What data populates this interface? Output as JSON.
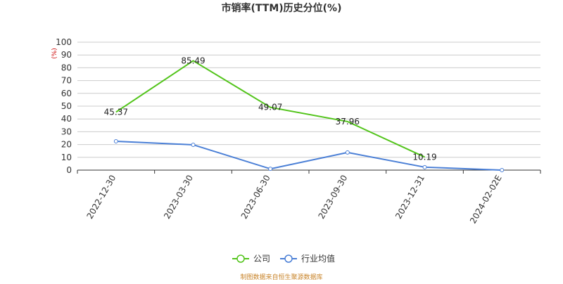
{
  "chart_data": {
    "type": "line",
    "title": "市销率(TTM)历史分位(%)",
    "y_unit": "(%)",
    "categories": [
      "2022-12-30",
      "2023-03-30",
      "2023-06-30",
      "2023-09-30",
      "2023-12-31",
      "2024-02-02E"
    ],
    "series": [
      {
        "name": "公司",
        "color": "#52c41a",
        "values": [
          45.37,
          85.49,
          49.07,
          37.96,
          10.19,
          null
        ],
        "show_labels": true
      },
      {
        "name": "行业均值",
        "color": "#4a7fd6",
        "values": [
          22.5,
          19.8,
          1.0,
          13.8,
          2.3,
          0.0
        ],
        "show_labels": false
      }
    ],
    "ylim": [
      0,
      100
    ],
    "yticks": [
      0,
      10,
      20,
      30,
      40,
      50,
      60,
      70,
      80,
      90,
      100
    ],
    "grid": true,
    "source": "制图数据来自恒生聚源数据库"
  }
}
